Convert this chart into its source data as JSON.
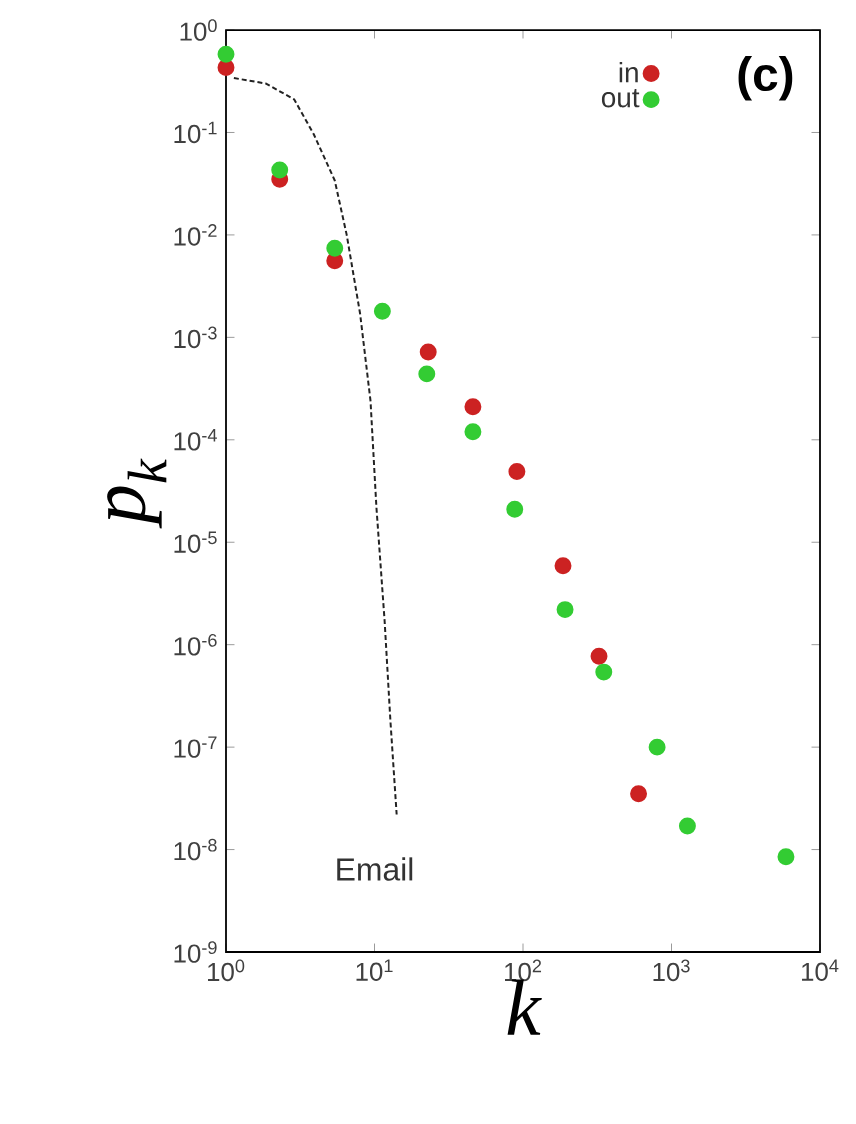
{
  "chart_data": {
    "type": "scatter",
    "xlabel": "k",
    "ylabel": "p$_{k}$",
    "log": "xy",
    "legend": "top right",
    "grid": false,
    "xlim": [
      1,
      10000
    ],
    "ylim": [
      1e-09,
      1
    ],
    "xticks": [
      {
        "value": 1,
        "label": "10$^{0}$"
      },
      {
        "value": 10,
        "label": "10$^{1}$"
      },
      {
        "value": 100,
        "label": "10$^{2}$"
      },
      {
        "value": 1000,
        "label": "10$^{3}$"
      },
      {
        "value": 10000,
        "label": "10$^{4}$"
      }
    ],
    "yticks": [
      {
        "value": 1e-09,
        "label": "10$^{-9}$"
      },
      {
        "value": 1e-08,
        "label": "10$^{-8}$"
      },
      {
        "value": 1e-07,
        "label": "10$^{-7}$"
      },
      {
        "value": 1e-06,
        "label": "10$^{-6}$"
      },
      {
        "value": 1e-05,
        "label": "10$^{-5}$"
      },
      {
        "value": 0.0001,
        "label": "10$^{-4}$"
      },
      {
        "value": 0.001,
        "label": "10$^{-3}$"
      },
      {
        "value": 0.01,
        "label": "10$^{-2}$"
      },
      {
        "value": 0.1,
        "label": "10$^{-1}$"
      },
      {
        "value": 1,
        "label": "10$^{0}$"
      }
    ],
    "series": [
      {
        "type": "line",
        "line_style": "dashed",
        "marker": "none",
        "color": "#222222",
        "x": [
          1.13,
          1.86,
          2.88,
          3.9,
          5.4,
          6.5,
          8.0,
          9.4,
          10.3,
          11.7,
          12.8,
          14.1
        ],
        "values": [
          0.34,
          0.3,
          0.21,
          0.096,
          0.034,
          0.01,
          0.0017,
          0.00024,
          2.2e-05,
          1.7e-06,
          1.8e-07,
          2.2e-08
        ]
      },
      {
        "name": "in",
        "marker": "circle",
        "color": "#cc2222",
        "x": [
          1,
          2.3,
          5.4,
          23,
          46,
          91,
          186,
          325,
          600
        ],
        "values": [
          0.43,
          0.035,
          0.0056,
          0.00072,
          0.00021,
          4.9e-05,
          5.9e-06,
          7.7e-07,
          3.5e-08
        ]
      },
      {
        "name": "out",
        "marker": "circle",
        "color": "#33cc33",
        "x": [
          1,
          2.3,
          5.4,
          11.3,
          22.5,
          46,
          88,
          192,
          350,
          800,
          1280,
          5900
        ],
        "values": [
          0.58,
          0.043,
          0.0074,
          0.0018,
          0.00044,
          0.00012,
          2.1e-05,
          2.2e-06,
          5.4e-07,
          1e-07,
          1.7e-08,
          8.5e-09
        ]
      }
    ],
    "annotations": [
      "Email",
      "(c)"
    ]
  }
}
